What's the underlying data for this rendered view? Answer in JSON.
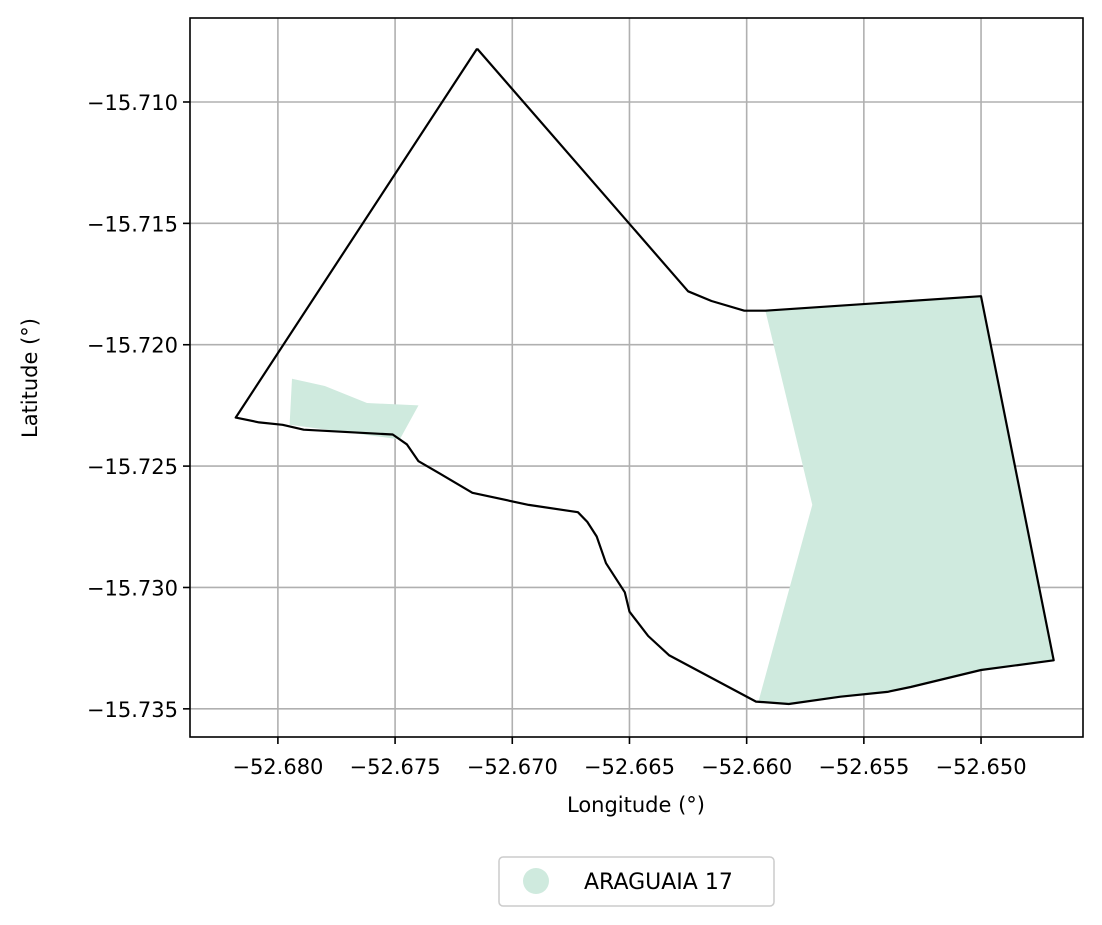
{
  "chart_data": {
    "type": "map",
    "title": "",
    "xlabel": "Longitude (°)",
    "ylabel": "Latitude (°)",
    "xlim": [
      -52.68375,
      -52.64565
    ],
    "ylim": [
      -15.73616,
      -15.70654
    ],
    "x_ticks": [
      -52.68,
      -52.675,
      -52.67,
      -52.665,
      -52.66,
      -52.655,
      -52.65
    ],
    "x_tick_labels": [
      "−52.680",
      "−52.675",
      "−52.670",
      "−52.665",
      "−52.660",
      "−52.655",
      "−52.650"
    ],
    "y_ticks": [
      -15.71,
      -15.715,
      -15.72,
      -15.725,
      -15.73,
      -15.735
    ],
    "y_tick_labels": [
      "−15.710",
      "−15.715",
      "−15.720",
      "−15.725",
      "−15.730",
      "−15.735"
    ],
    "grid": true,
    "legend": {
      "placement": "bottom-center",
      "entries": [
        {
          "label": "ARAGUAIA 17",
          "color": "#cfeade",
          "marker": "circle"
        }
      ]
    },
    "colors": {
      "fill": "#cfeade",
      "outline": "#000000",
      "grid": "#b0b0b0"
    },
    "outline": [
      [
        -52.6715,
        -15.7078
      ],
      [
        -52.6625,
        -15.7178
      ],
      [
        -52.6615,
        -15.7182
      ],
      [
        -52.6601,
        -15.7186
      ],
      [
        -52.6592,
        -15.7186
      ],
      [
        -52.65,
        -15.718
      ],
      [
        -52.6469,
        -15.733
      ],
      [
        -52.65,
        -15.7334
      ],
      [
        -52.653,
        -15.7341
      ],
      [
        -52.654,
        -15.7343
      ],
      [
        -52.656,
        -15.7345
      ],
      [
        -52.6582,
        -15.7348
      ],
      [
        -52.6596,
        -15.7347
      ],
      [
        -52.6633,
        -15.7328
      ],
      [
        -52.6642,
        -15.732
      ],
      [
        -52.665,
        -15.731
      ],
      [
        -52.6652,
        -15.7302
      ],
      [
        -52.666,
        -15.729
      ],
      [
        -52.6664,
        -15.7279
      ],
      [
        -52.6668,
        -15.7273
      ],
      [
        -52.6672,
        -15.7269
      ],
      [
        -52.6693,
        -15.7266
      ],
      [
        -52.6717,
        -15.7261
      ],
      [
        -52.6731,
        -15.7253
      ],
      [
        -52.674,
        -15.7248
      ],
      [
        -52.6745,
        -15.7241
      ],
      [
        -52.6751,
        -15.7237
      ],
      [
        -52.6789,
        -15.7235
      ],
      [
        -52.6798,
        -15.7233
      ],
      [
        -52.6808,
        -15.7232
      ],
      [
        -52.6818,
        -15.723
      ],
      [
        -52.6715,
        -15.7078
      ]
    ],
    "filled_areas": [
      {
        "name": "",
        "points": [
          [
            -52.6592,
            -15.7186
          ],
          [
            -52.65,
            -15.718
          ],
          [
            -52.6469,
            -15.733
          ],
          [
            -52.65,
            -15.7334
          ],
          [
            -52.653,
            -15.7341
          ],
          [
            -52.654,
            -15.7343
          ],
          [
            -52.656,
            -15.7345
          ],
          [
            -52.6582,
            -15.7348
          ],
          [
            -52.6595,
            -15.7347
          ],
          [
            -52.6572,
            -15.7266
          ],
          [
            -52.6592,
            -15.7186
          ]
        ]
      },
      {
        "name": "",
        "points": [
          [
            -52.6794,
            -15.7214
          ],
          [
            -52.678,
            -15.7217
          ],
          [
            -52.6762,
            -15.7224
          ],
          [
            -52.674,
            -15.7225
          ],
          [
            -52.6748,
            -15.7239
          ],
          [
            -52.6795,
            -15.7233
          ],
          [
            -52.6794,
            -15.7214
          ]
        ]
      }
    ]
  }
}
